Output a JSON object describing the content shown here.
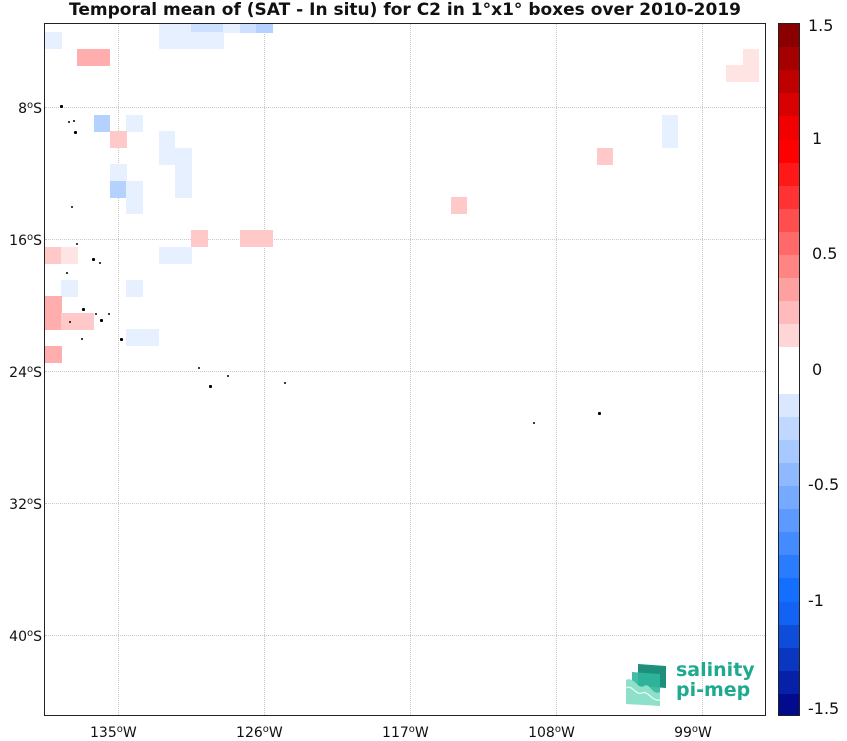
{
  "title": "Temporal mean of (SAT - In situ) for C2 in 1°x1° boxes over 2010-2019",
  "chart_data": {
    "type": "heatmap",
    "projection": "lon-lat grid, 1°x1° boxes",
    "lon_range": [
      -139.5,
      -95
    ],
    "lat_range": [
      -45,
      -3
    ],
    "x_ticks": [
      {
        "value": -135,
        "num": "135",
        "hemi": "W"
      },
      {
        "value": -126,
        "num": "126",
        "hemi": "W"
      },
      {
        "value": -117,
        "num": "117",
        "hemi": "W"
      },
      {
        "value": -108,
        "num": "108",
        "hemi": "W"
      },
      {
        "value": -99,
        "num": "99",
        "hemi": "W"
      }
    ],
    "y_ticks": [
      {
        "value": -8,
        "num": "8",
        "hemi": "S"
      },
      {
        "value": -16,
        "num": "16",
        "hemi": "S"
      },
      {
        "value": -24,
        "num": "24",
        "hemi": "S"
      },
      {
        "value": -32,
        "num": "32",
        "hemi": "S"
      },
      {
        "value": -40,
        "num": "40",
        "hemi": "S"
      }
    ],
    "grid": true,
    "colorbar": {
      "range": [
        -1.5,
        1.5
      ],
      "step": 0.1,
      "labels": [
        "1.5",
        "1",
        "0.5",
        "0",
        "-0.5",
        "-1",
        "-1.5"
      ],
      "colormap": "blue-white-red diverging",
      "positive_color": "#ff0000",
      "negative_color": "#1a6bff"
    },
    "cells": [
      {
        "lon": -139,
        "lat": -4,
        "value": -0.1
      },
      {
        "lon": -132,
        "lat": -3,
        "value": -0.1
      },
      {
        "lon": -131,
        "lat": -3,
        "value": -0.1
      },
      {
        "lon": -130,
        "lat": -3,
        "value": -0.2
      },
      {
        "lon": -129,
        "lat": -3,
        "value": -0.2
      },
      {
        "lon": -128,
        "lat": -3,
        "value": -0.1
      },
      {
        "lon": -127,
        "lat": -3,
        "value": -0.2
      },
      {
        "lon": -126,
        "lat": -3,
        "value": -0.3
      },
      {
        "lon": -132,
        "lat": -4,
        "value": -0.1
      },
      {
        "lon": -131,
        "lat": -4,
        "value": -0.1
      },
      {
        "lon": -130,
        "lat": -4,
        "value": -0.1
      },
      {
        "lon": -129,
        "lat": -4,
        "value": -0.1
      },
      {
        "lon": -137,
        "lat": -5,
        "value": 0.3
      },
      {
        "lon": -136,
        "lat": -5,
        "value": 0.3
      },
      {
        "lon": -96,
        "lat": -5,
        "value": 0.1
      },
      {
        "lon": -97,
        "lat": -6,
        "value": 0.1
      },
      {
        "lon": -96,
        "lat": -6,
        "value": 0.1
      },
      {
        "lon": -136,
        "lat": -9,
        "value": -0.3
      },
      {
        "lon": -134,
        "lat": -9,
        "value": -0.1
      },
      {
        "lon": -101,
        "lat": -9,
        "value": -0.1
      },
      {
        "lon": -135,
        "lat": -10,
        "value": 0.2
      },
      {
        "lon": -132,
        "lat": -10,
        "value": -0.1
      },
      {
        "lon": -101,
        "lat": -10,
        "value": -0.1
      },
      {
        "lon": -132,
        "lat": -11,
        "value": -0.1
      },
      {
        "lon": -131,
        "lat": -11,
        "value": -0.1
      },
      {
        "lon": -105,
        "lat": -11,
        "value": 0.2
      },
      {
        "lon": -135,
        "lat": -12,
        "value": -0.1
      },
      {
        "lon": -131,
        "lat": -12,
        "value": -0.1
      },
      {
        "lon": -135,
        "lat": -13,
        "value": -0.3
      },
      {
        "lon": -134,
        "lat": -13,
        "value": -0.1
      },
      {
        "lon": -131,
        "lat": -13,
        "value": -0.1
      },
      {
        "lon": -134,
        "lat": -14,
        "value": -0.1
      },
      {
        "lon": -114,
        "lat": -14,
        "value": 0.2
      },
      {
        "lon": -130,
        "lat": -16,
        "value": 0.2
      },
      {
        "lon": -127,
        "lat": -16,
        "value": 0.2
      },
      {
        "lon": -126,
        "lat": -16,
        "value": 0.2
      },
      {
        "lon": -132,
        "lat": -17,
        "value": -0.1
      },
      {
        "lon": -131,
        "lat": -17,
        "value": -0.1
      },
      {
        "lon": -139,
        "lat": -17,
        "value": 0.2
      },
      {
        "lon": -138,
        "lat": -17,
        "value": 0.1
      },
      {
        "lon": -138,
        "lat": -19,
        "value": -0.1
      },
      {
        "lon": -134,
        "lat": -19,
        "value": -0.1
      },
      {
        "lon": -139,
        "lat": -20,
        "value": 0.3
      },
      {
        "lon": -139,
        "lat": -21,
        "value": 0.3
      },
      {
        "lon": -138,
        "lat": -21,
        "value": 0.2
      },
      {
        "lon": -137,
        "lat": -21,
        "value": 0.2
      },
      {
        "lon": -134,
        "lat": -22,
        "value": -0.1
      },
      {
        "lon": -133,
        "lat": -22,
        "value": -0.1
      },
      {
        "lon": -139,
        "lat": -23,
        "value": 0.3
      }
    ],
    "islands": [
      {
        "lon": -138.6,
        "lat": -7.9
      },
      {
        "lon": -138.1,
        "lat": -8.9
      },
      {
        "lon": -137.8,
        "lat": -8.8
      },
      {
        "lon": -137.7,
        "lat": -9.5
      },
      {
        "lon": -137.9,
        "lat": -14.0
      },
      {
        "lon": -137.6,
        "lat": -16.3
      },
      {
        "lon": -136.6,
        "lat": -17.2
      },
      {
        "lon": -136.2,
        "lat": -17.4
      },
      {
        "lon": -138.2,
        "lat": -18.0
      },
      {
        "lon": -137.2,
        "lat": -20.2
      },
      {
        "lon": -136.4,
        "lat": -20.5
      },
      {
        "lon": -135.6,
        "lat": -20.5
      },
      {
        "lon": -136.1,
        "lat": -20.9
      },
      {
        "lon": -138.0,
        "lat": -21.0
      },
      {
        "lon": -137.3,
        "lat": -22.0
      },
      {
        "lon": -134.9,
        "lat": -22.0
      },
      {
        "lon": -130.1,
        "lat": -23.8
      },
      {
        "lon": -128.3,
        "lat": -24.3
      },
      {
        "lon": -129.4,
        "lat": -24.9
      },
      {
        "lon": -124.8,
        "lat": -24.7
      },
      {
        "lon": -109.4,
        "lat": -27.1
      },
      {
        "lon": -105.4,
        "lat": -26.5
      }
    ]
  },
  "logo": {
    "line1": "salinity",
    "line2": "pi-mep"
  }
}
